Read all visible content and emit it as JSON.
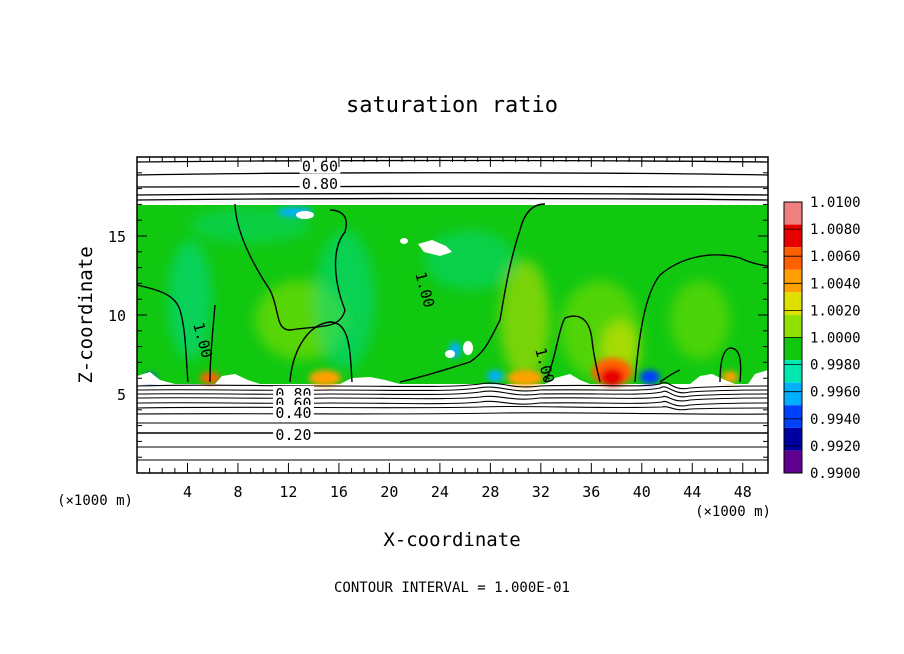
{
  "chart_data": {
    "type": "heatmap",
    "title": "saturation ratio",
    "xlabel": "X-coordinate",
    "ylabel": "Z-coordinate",
    "x_unit_label": "(×1000 m)",
    "z_unit_label": "(×1000 m)",
    "xlim": [
      0,
      50
    ],
    "ylim": [
      0,
      20
    ],
    "x_ticks": [
      4,
      8,
      12,
      16,
      20,
      24,
      28,
      32,
      36,
      40,
      44,
      48
    ],
    "y_ticks": [
      5,
      10,
      15
    ],
    "colorbar": {
      "levels": [
        "1.0100",
        "1.0080",
        "1.0060",
        "1.0040",
        "1.0020",
        "1.0000",
        "0.9980",
        "0.9960",
        "0.9940",
        "0.9920",
        "0.9900"
      ],
      "colors": [
        "#f08080",
        "#e80000",
        "#ff6000",
        "#ffa000",
        "#e0e000",
        "#90e000",
        "#10c810",
        "#00e8b0",
        "#00b0ff",
        "#0040ff",
        "#0000a0",
        "#600090"
      ]
    },
    "contour_labels": [
      {
        "text": "0.60",
        "x": 14.5,
        "z": 19.4
      },
      {
        "text": "0.80",
        "x": 14.5,
        "z": 18.3
      },
      {
        "text": "1.00",
        "x": 5.2,
        "z": 8.4
      },
      {
        "text": "1.00",
        "x": 22.8,
        "z": 11.6
      },
      {
        "text": "1.00",
        "x": 32.3,
        "z": 6.8
      },
      {
        "text": "0.80",
        "x": 12.4,
        "z": 5.0
      },
      {
        "text": "0.60",
        "x": 12.4,
        "z": 4.4
      },
      {
        "text": "0.40",
        "x": 12.4,
        "z": 3.8
      },
      {
        "text": "0.20",
        "x": 12.4,
        "z": 2.4
      }
    ],
    "footer": "CONTOUR INTERVAL = 1.000E-01"
  }
}
